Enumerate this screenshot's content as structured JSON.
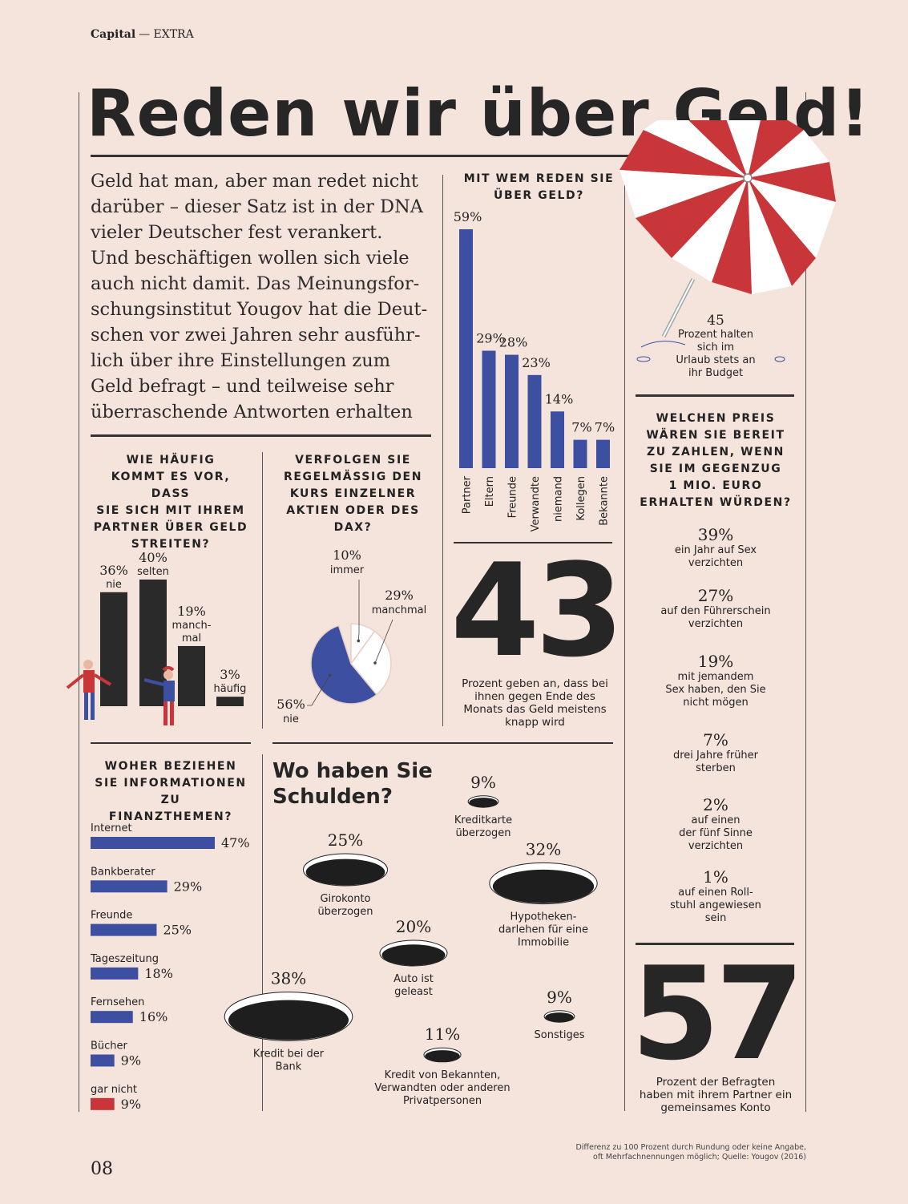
{
  "header": {
    "brand": "Capital",
    "section": "— EXTRA"
  },
  "title": "Reden wir über Geld!",
  "intro": "Geld hat man, aber man redet nicht darüber – dieser Satz ist in der DNA vieler Deutscher fest verankert. Und beschäftigen wollen sich viele auch nicht damit. Das Meinungsforschungsinstitut Yougov hat die Deutschen vor zwei Jahren sehr ausführlich über ihre Einstellungen zum Geld befragt – und teilweise sehr überraschende Antworten erhalten",
  "intro_lines": [
    "Geld hat man, aber man redet nicht",
    "darüber – dieser Satz ist in der DNA",
    "vieler Deutscher fest verankert.",
    "Und beschäftigen wollen sich viele",
    "auch nicht damit. Das Meinungsfor-",
    "schungsinstitut Yougov hat die Deut-",
    "schen vor zwei Jahren sehr ausführ-",
    "lich über ihre Einstellungen zum",
    "Geld befragt – und teilweise sehr",
    "überraschende Antworten erhalten"
  ],
  "chart_data": [
    {
      "type": "bar",
      "id": "mit_wem",
      "title": "MIT WEM REDEN SIE ÜBER GELD?",
      "categories": [
        "Partner",
        "Eltern",
        "Freunde",
        "Verwandte",
        "niemand",
        "Kollegen",
        "Bekannte"
      ],
      "values": [
        59,
        29,
        28,
        23,
        14,
        7,
        7
      ],
      "labels": [
        "59%",
        "29%",
        "28%",
        "23%",
        "14%",
        "7%",
        "7%"
      ],
      "color": "#3d4fa0"
    },
    {
      "type": "bar",
      "id": "streit",
      "title": "WIE HÄUFIG KOMMT ES VOR, DASS SIE SICH MIT IHREM PARTNER ÜBER GELD STREITEN?",
      "categories": [
        "nie",
        "selten",
        "manch-mal",
        "häufig"
      ],
      "values": [
        36,
        40,
        19,
        3
      ],
      "labels": [
        "36%",
        "40%",
        "19%",
        "3%"
      ],
      "color": "#2a2a2a"
    },
    {
      "type": "pie",
      "id": "aktien",
      "title": "VERFOLGEN SIE REGELMÄSSIG DEN KURS EINZELNER AKTIEN ODER DES DAX?",
      "categories": [
        "immer",
        "manchmal",
        "nie"
      ],
      "values": [
        10,
        29,
        56
      ],
      "labels": [
        "10%",
        "29%",
        "56%"
      ],
      "colors": [
        "#ffffff",
        "#ffffff",
        "#3d4fa0"
      ]
    },
    {
      "type": "bar",
      "id": "informationen",
      "title": "WOHER BEZIEHEN SIE INFORMATIONEN ZU FINANZTHEMEN?",
      "categories": [
        "Internet",
        "Bankberater",
        "Freunde",
        "Tageszeitung",
        "Fernsehen",
        "Bücher",
        "gar nicht"
      ],
      "values": [
        47,
        29,
        25,
        18,
        16,
        9,
        9
      ],
      "labels": [
        "47%",
        "29%",
        "25%",
        "18%",
        "16%",
        "9%",
        "9%"
      ],
      "colors": [
        "#3d4fa0",
        "#3d4fa0",
        "#3d4fa0",
        "#3d4fa0",
        "#3d4fa0",
        "#3d4fa0",
        "#c8363a"
      ]
    },
    {
      "type": "bubble",
      "id": "schulden",
      "title": "Wo haben Sie Schulden?",
      "categories": [
        "Kreditkarte überzogen",
        "Girokonto überzogen",
        "Hypothekendarlehen für eine Immobilie",
        "Auto ist geleast",
        "Kredit bei der Bank",
        "Kredit von Bekannten, Verwandten oder anderen Privatpersonen",
        "Sonstiges"
      ],
      "values": [
        9,
        25,
        32,
        20,
        38,
        11,
        9
      ],
      "labels": [
        "9%",
        "25%",
        "32%",
        "20%",
        "38%",
        "11%",
        "9%"
      ]
    }
  ],
  "mitwem": {
    "title_lines": [
      "MIT WEM REDEN SIE",
      "ÜBER GELD?"
    ]
  },
  "streit": {
    "title_lines": [
      "WIE HÄUFIG",
      "KOMMT ES VOR, DASS",
      "SIE SICH MIT IHREM",
      "PARTNER ÜBER GELD",
      "STREITEN?"
    ],
    "cat_lines": [
      [
        "nie"
      ],
      [
        "selten"
      ],
      [
        "manch-",
        "mal"
      ],
      [
        "häufig"
      ]
    ]
  },
  "aktien": {
    "title_lines": [
      "VERFOLGEN SIE",
      "REGELMÄSSIG DEN",
      "KURS EINZELNER",
      "AKTIEN ODER DES",
      "DAX?"
    ]
  },
  "info": {
    "title_lines": [
      "WOHER BEZIEHEN",
      "SIE INFORMATIONEN ZU",
      "FINANZTHEMEN?"
    ]
  },
  "schulden": {
    "title_lines": [
      "Wo haben Sie",
      "Schulden?"
    ],
    "cat_lines": [
      [
        "Kreditkarte",
        "überzogen"
      ],
      [
        "Girokonto",
        "überzogen"
      ],
      [
        "Hypotheken-",
        "darlehen für eine",
        "Immobilie"
      ],
      [
        "Auto ist",
        "geleast"
      ],
      [
        "Kredit bei der",
        "Bank"
      ],
      [
        "Kredit von Bekannten,",
        "Verwandten oder anderen",
        "Privatpersonen"
      ],
      [
        "Sonstiges"
      ]
    ]
  },
  "stat43": {
    "number": "43",
    "text_lines": [
      "Prozent geben an, dass bei",
      "ihnen gegen Ende des",
      "Monats das Geld meistens",
      "knapp wird"
    ]
  },
  "stat45": {
    "number": "45",
    "text_lines": [
      "Prozent halten",
      "sich im",
      "Urlaub stets an",
      "ihr Budget"
    ]
  },
  "stat57": {
    "number": "57",
    "text_lines": [
      "Prozent der Befragten",
      "haben mit ihrem Partner ein",
      "gemeinsames Konto"
    ]
  },
  "preis": {
    "title_lines": [
      "WELCHEN PREIS",
      "WÄREN SIE BEREIT",
      "ZU ZAHLEN, WENN",
      "SIE IM GEGENZUG",
      "1 MIO. EURO",
      "ERHALTEN WÜRDEN?"
    ],
    "items": [
      {
        "pct": "39%",
        "lines": [
          "ein Jahr auf Sex",
          "verzichten"
        ]
      },
      {
        "pct": "27%",
        "lines": [
          "auf den Führerschein",
          "verzichten"
        ]
      },
      {
        "pct": "19%",
        "lines": [
          "mit jemandem",
          "Sex haben, den Sie",
          "nicht mögen"
        ]
      },
      {
        "pct": "7%",
        "lines": [
          "drei Jahre früher",
          "sterben"
        ]
      },
      {
        "pct": "2%",
        "lines": [
          "auf einen",
          "der fünf Sinne",
          "verzichten"
        ]
      },
      {
        "pct": "1%",
        "lines": [
          "auf einen Roll-",
          "stuhl angewiesen",
          "sein"
        ]
      }
    ]
  },
  "footnote_lines": [
    "Differenz zu 100 Prozent durch Rundung oder keine Angabe,",
    "oft Mehrfachnennungen möglich; Quelle: Yougov (2016)"
  ],
  "page_number": "08",
  "colors": {
    "background": "#f5e4db",
    "blue": "#3d4fa0",
    "red": "#c8363a",
    "dark": "#2a2a2a"
  }
}
